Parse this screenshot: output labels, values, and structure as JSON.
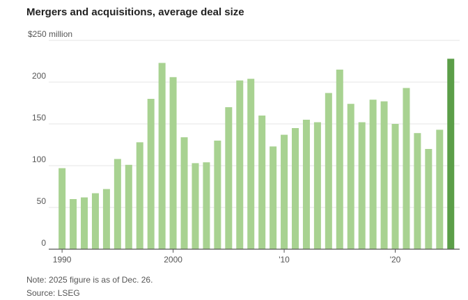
{
  "chart_data": {
    "type": "bar",
    "title": "Mergers and acquisitions, average deal size",
    "x": [
      1990,
      1991,
      1992,
      1993,
      1994,
      1995,
      1996,
      1997,
      1998,
      1999,
      2000,
      2001,
      2002,
      2003,
      2004,
      2005,
      2006,
      2007,
      2008,
      2009,
      2010,
      2011,
      2012,
      2013,
      2014,
      2015,
      2016,
      2017,
      2018,
      2019,
      2020,
      2021,
      2022,
      2023,
      2024,
      2025
    ],
    "values": [
      97,
      60,
      62,
      67,
      72,
      108,
      101,
      128,
      180,
      223,
      206,
      134,
      103,
      104,
      130,
      170,
      202,
      204,
      160,
      123,
      137,
      145,
      155,
      152,
      187,
      215,
      174,
      152,
      179,
      177,
      150,
      193,
      139,
      120,
      143,
      228
    ],
    "colors": [
      "#a8d291",
      "#a8d291",
      "#a8d291",
      "#a8d291",
      "#a8d291",
      "#a8d291",
      "#a8d291",
      "#a8d291",
      "#a8d291",
      "#a8d291",
      "#a8d291",
      "#a8d291",
      "#a8d291",
      "#a8d291",
      "#a8d291",
      "#a8d291",
      "#a8d291",
      "#a8d291",
      "#a8d291",
      "#a8d291",
      "#a8d291",
      "#a8d291",
      "#a8d291",
      "#a8d291",
      "#a8d291",
      "#a8d291",
      "#a8d291",
      "#a8d291",
      "#a8d291",
      "#a8d291",
      "#a8d291",
      "#a8d291",
      "#a8d291",
      "#a8d291",
      "#a8d291",
      "#5b9e48"
    ],
    "xlim": [
      1988.8,
      2025.8
    ],
    "xticks": [
      1990,
      2000,
      {
        "value": 2010,
        "label": "'10"
      },
      {
        "value": 2020,
        "label": "'20"
      }
    ],
    "ylim": [
      0,
      250
    ],
    "yticks": [
      0,
      50,
      100,
      150,
      200,
      {
        "value": 250,
        "label": "$250 million"
      }
    ],
    "grid": true,
    "notes": [
      "Note: 2025 figure is as of Dec. 26.",
      "Source: LSEG"
    ]
  }
}
